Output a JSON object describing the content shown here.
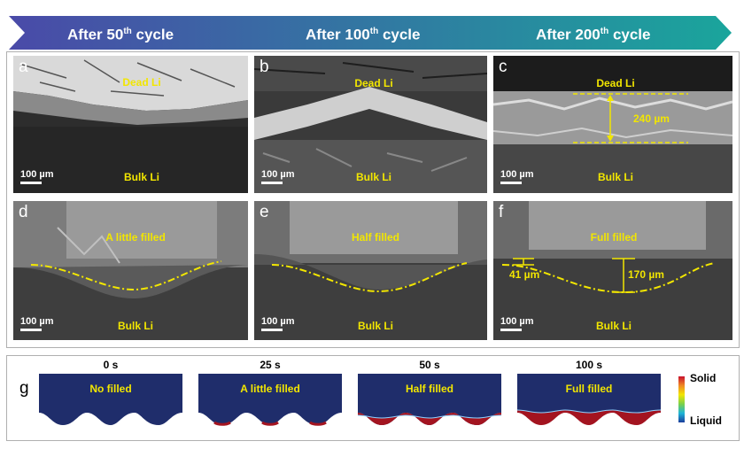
{
  "banner": {
    "steps": [
      {
        "prefix": "After 50",
        "sup": "th",
        "suffix": " cycle"
      },
      {
        "prefix": "After 100",
        "sup": "th",
        "suffix": " cycle"
      },
      {
        "prefix": "After 200",
        "sup": "th",
        "suffix": " cycle"
      }
    ],
    "colors": {
      "start": "#4a4aa8",
      "end": "#1aa59c"
    }
  },
  "panels": {
    "a": {
      "label": "a",
      "top_text": "Dead Li",
      "bottom_text": "Bulk Li",
      "scale": "100 µm"
    },
    "b": {
      "label": "b",
      "top_text": "Dead Li",
      "bottom_text": "Bulk Li",
      "scale": "100 µm"
    },
    "c": {
      "label": "c",
      "top_text": "Dead Li",
      "bottom_text": "Bulk Li",
      "scale": "100 µm",
      "measure": "240 µm"
    },
    "d": {
      "label": "d",
      "top_text": "A little filled",
      "bottom_text": "Bulk Li",
      "scale": "100 µm"
    },
    "e": {
      "label": "e",
      "top_text": "Half filled",
      "bottom_text": "Bulk Li",
      "scale": "100 µm"
    },
    "f": {
      "label": "f",
      "top_text": "Full filled",
      "bottom_text": "Bulk Li",
      "scale": "100 µm",
      "measure_left": "41 µm",
      "measure_right": "170 µm"
    }
  },
  "simulation": {
    "label": "g",
    "frames": [
      {
        "time": "0 s",
        "text": "No filled",
        "fill_fraction": 0.0
      },
      {
        "time": "25 s",
        "text": "A little filled",
        "fill_fraction": 0.15
      },
      {
        "time": "50 s",
        "text": "Half filled",
        "fill_fraction": 0.45
      },
      {
        "time": "100 s",
        "text": "Full filled",
        "fill_fraction": 1.0
      }
    ],
    "colorbar": {
      "top": "Solid",
      "bottom": "Liquid"
    },
    "colors": {
      "liquid": "#1f2d6b",
      "solid": "#a31420",
      "accent": "#f2e600"
    }
  }
}
